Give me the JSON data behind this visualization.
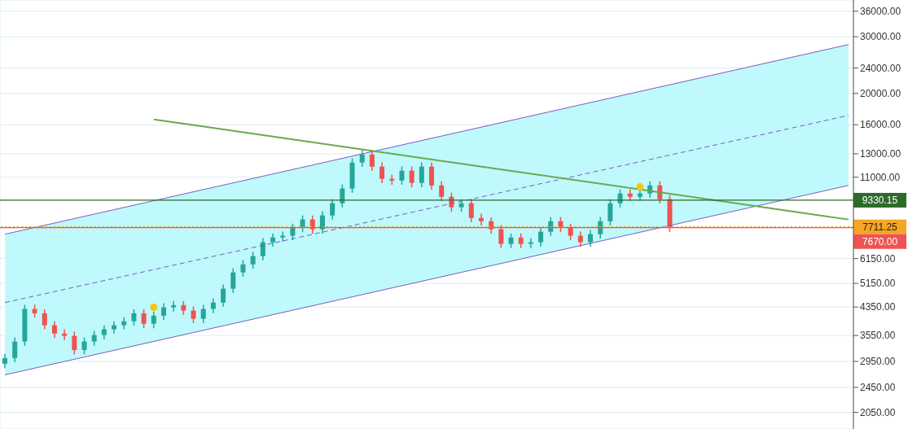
{
  "chart_data": {
    "type": "candlestick",
    "categories": [
      null,
      null,
      null,
      null,
      null,
      null,
      null,
      null,
      null,
      null,
      null,
      null,
      null,
      null,
      null,
      null,
      null,
      null,
      null,
      null,
      null,
      null,
      null,
      null,
      null,
      null,
      null,
      null,
      null,
      null,
      null,
      null,
      null,
      null,
      null,
      null,
      null,
      null,
      null,
      null,
      null,
      null,
      null,
      null,
      null,
      null,
      null,
      null,
      null,
      null,
      null,
      null,
      null,
      null,
      null,
      null,
      null,
      null,
      null,
      null,
      null,
      null,
      null,
      null,
      null,
      null,
      null,
      null,
      null,
      null,
      null,
      null,
      null,
      null,
      null,
      null,
      null,
      null,
      null,
      null,
      null,
      null,
      null,
      null,
      null,
      null
    ],
    "ohlc": [
      [
        2900,
        3110,
        2810,
        3020
      ],
      [
        3020,
        3500,
        2930,
        3400
      ],
      [
        3400,
        4420,
        3300,
        4290
      ],
      [
        4290,
        4420,
        4040,
        4160
      ],
      [
        4160,
        4280,
        3710,
        3820
      ],
      [
        3820,
        3930,
        3490,
        3600
      ],
      [
        3600,
        3710,
        3430,
        3540
      ],
      [
        3540,
        3650,
        3100,
        3200
      ],
      [
        3200,
        3500,
        3100,
        3400
      ],
      [
        3400,
        3670,
        3300,
        3560
      ],
      [
        3560,
        3820,
        3450,
        3710
      ],
      [
        3710,
        3930,
        3600,
        3820
      ],
      [
        3820,
        4050,
        3710,
        3930
      ],
      [
        3930,
        4280,
        3810,
        4160
      ],
      [
        4160,
        4280,
        3740,
        3860
      ],
      [
        3860,
        4210,
        3740,
        4090
      ],
      [
        4090,
        4470,
        3970,
        4340
      ],
      [
        4340,
        4540,
        4210,
        4410
      ],
      [
        4410,
        4540,
        4110,
        4240
      ],
      [
        4240,
        4370,
        3880,
        4000
      ],
      [
        4000,
        4420,
        3880,
        4290
      ],
      [
        4290,
        4620,
        4160,
        4490
      ],
      [
        4490,
        5110,
        4360,
        4960
      ],
      [
        4960,
        5740,
        4810,
        5570
      ],
      [
        5570,
        6080,
        5400,
        5900
      ],
      [
        5900,
        6450,
        5720,
        6260
      ],
      [
        6260,
        7120,
        6070,
        6910
      ],
      [
        6910,
        7360,
        6700,
        7150
      ],
      [
        7150,
        7460,
        6940,
        7240
      ],
      [
        7240,
        7890,
        7020,
        7660
      ],
      [
        7660,
        8370,
        7430,
        8130
      ],
      [
        8130,
        8370,
        7350,
        7580
      ],
      [
        7580,
        8620,
        7350,
        8370
      ],
      [
        8370,
        9400,
        8120,
        9130
      ],
      [
        9130,
        10440,
        8860,
        10140
      ],
      [
        10140,
        12580,
        9840,
        12210
      ],
      [
        12210,
        13330,
        11840,
        12940
      ],
      [
        12940,
        13330,
        11500,
        11860
      ],
      [
        11860,
        12220,
        10540,
        10870
      ],
      [
        10870,
        11200,
        10420,
        10740
      ],
      [
        10740,
        11870,
        10420,
        11520
      ],
      [
        11520,
        11870,
        10240,
        10560
      ],
      [
        10560,
        12220,
        10240,
        11860
      ],
      [
        11860,
        12220,
        10060,
        10370
      ],
      [
        10370,
        10680,
        9270,
        9560
      ],
      [
        9560,
        9850,
        8600,
        8870
      ],
      [
        8870,
        9400,
        8600,
        9130
      ],
      [
        9130,
        9400,
        7970,
        8220
      ],
      [
        8220,
        8470,
        7790,
        8030
      ],
      [
        8030,
        8270,
        7350,
        7580
      ],
      [
        7580,
        7810,
        6630,
        6830
      ],
      [
        6830,
        7360,
        6630,
        7150
      ],
      [
        7150,
        7360,
        6630,
        6830
      ],
      [
        6830,
        7120,
        6630,
        6910
      ],
      [
        6910,
        7670,
        6700,
        7450
      ],
      [
        7450,
        8270,
        7230,
        8030
      ],
      [
        8030,
        8270,
        7430,
        7660
      ],
      [
        7660,
        7890,
        7020,
        7240
      ],
      [
        7240,
        7460,
        6700,
        6910
      ],
      [
        6910,
        7540,
        6700,
        7320
      ],
      [
        7320,
        8270,
        7100,
        8030
      ],
      [
        8030,
        9400,
        7790,
        9130
      ],
      [
        9130,
        10080,
        8860,
        9790
      ],
      [
        9790,
        10080,
        9270,
        9560
      ],
      [
        9560,
        10080,
        9270,
        9790
      ],
      [
        9790,
        10680,
        9500,
        10370
      ],
      [
        10370,
        10680,
        9120,
        9400
      ],
      [
        9400,
        9680,
        7440,
        7670
      ],
      null,
      null,
      null,
      null,
      null,
      null,
      null,
      null,
      null,
      null,
      null,
      null,
      null,
      null,
      null,
      null,
      null,
      null
    ],
    "series": [
      {
        "type": "line",
        "color": "#7b5cc4",
        "line_style": "dashed",
        "values": [
          4490,
          null,
          null,
          null,
          null,
          null,
          null,
          null,
          null,
          null,
          null,
          null,
          null,
          null,
          null,
          null,
          null,
          null,
          null,
          null,
          null,
          null,
          null,
          null,
          null,
          null,
          null,
          null,
          null,
          null,
          null,
          null,
          null,
          null,
          null,
          null,
          null,
          null,
          null,
          null,
          null,
          null,
          null,
          null,
          null,
          null,
          null,
          null,
          null,
          null,
          null,
          null,
          null,
          null,
          null,
          null,
          null,
          null,
          null,
          null,
          null,
          null,
          null,
          null,
          null,
          null,
          null,
          null,
          null,
          null,
          null,
          null,
          null,
          null,
          null,
          null,
          null,
          null,
          null,
          null,
          null,
          null,
          null,
          null,
          null,
          17100
        ],
        "lower": [
          2680,
          null,
          null,
          null,
          null,
          null,
          null,
          null,
          null,
          null,
          null,
          null,
          null,
          null,
          null,
          null,
          null,
          null,
          null,
          null,
          null,
          null,
          null,
          null,
          null,
          null,
          null,
          null,
          null,
          null,
          null,
          null,
          null,
          null,
          null,
          null,
          null,
          null,
          null,
          null,
          null,
          null,
          null,
          null,
          null,
          null,
          null,
          null,
          null,
          null,
          null,
          null,
          null,
          null,
          null,
          null,
          null,
          null,
          null,
          null,
          null,
          null,
          null,
          null,
          null,
          null,
          null,
          null,
          null,
          null,
          null,
          null,
          null,
          null,
          null,
          null,
          null,
          null,
          null,
          null,
          null,
          null,
          null,
          null,
          null,
          10370
        ],
        "upper": [
          7320,
          null,
          null,
          null,
          null,
          null,
          null,
          null,
          null,
          null,
          null,
          null,
          null,
          null,
          null,
          null,
          null,
          null,
          null,
          null,
          null,
          null,
          null,
          null,
          null,
          null,
          null,
          null,
          null,
          null,
          null,
          null,
          null,
          null,
          null,
          null,
          null,
          null,
          null,
          null,
          null,
          null,
          null,
          null,
          null,
          null,
          null,
          null,
          null,
          null,
          null,
          null,
          null,
          null,
          null,
          null,
          null,
          null,
          null,
          null,
          null,
          null,
          null,
          null,
          null,
          null,
          null,
          null,
          null,
          null,
          null,
          null,
          null,
          null,
          null,
          null,
          null,
          null,
          null,
          null,
          null,
          null,
          null,
          null,
          null,
          28370
        ]
      },
      {
        "type": "line",
        "color": "#7b5cc4",
        "line_style": "solid",
        "values": [
          2680,
          null,
          null,
          null,
          null,
          null,
          null,
          null,
          null,
          null,
          null,
          null,
          null,
          null,
          null,
          null,
          null,
          null,
          null,
          null,
          null,
          null,
          null,
          null,
          null,
          null,
          null,
          null,
          null,
          null,
          null,
          null,
          null,
          null,
          null,
          null,
          null,
          null,
          null,
          null,
          null,
          null,
          null,
          null,
          null,
          null,
          null,
          null,
          null,
          null,
          null,
          null,
          null,
          null,
          null,
          null,
          null,
          null,
          null,
          null,
          null,
          null,
          null,
          null,
          null,
          null,
          null,
          null,
          null,
          null,
          null,
          null,
          null,
          null,
          null,
          null,
          null,
          null,
          null,
          null,
          null,
          null,
          null,
          null,
          null,
          10370
        ]
      },
      {
        "type": "line",
        "color": "#7b5cc4",
        "line_style": "solid",
        "values": [
          7320,
          null,
          null,
          null,
          null,
          null,
          null,
          null,
          null,
          null,
          null,
          null,
          null,
          null,
          null,
          null,
          null,
          null,
          null,
          null,
          null,
          null,
          null,
          null,
          null,
          null,
          null,
          null,
          null,
          null,
          null,
          null,
          null,
          null,
          null,
          null,
          null,
          null,
          null,
          null,
          null,
          null,
          null,
          null,
          null,
          null,
          null,
          null,
          null,
          null,
          null,
          null,
          null,
          null,
          null,
          null,
          null,
          null,
          null,
          null,
          null,
          null,
          null,
          null,
          null,
          null,
          null,
          null,
          null,
          null,
          null,
          null,
          null,
          null,
          null,
          null,
          null,
          null,
          null,
          null,
          null,
          null,
          null,
          null,
          null,
          28370
        ]
      },
      {
        "type": "line",
        "color": "#6aa84f",
        "line_style": "solid",
        "values": [
          null,
          null,
          null,
          null,
          null,
          null,
          null,
          null,
          null,
          null,
          null,
          null,
          null,
          null,
          null,
          16620,
          null,
          null,
          null,
          null,
          null,
          null,
          null,
          null,
          null,
          null,
          null,
          null,
          null,
          null,
          null,
          null,
          null,
          null,
          null,
          null,
          null,
          null,
          null,
          null,
          null,
          null,
          null,
          null,
          null,
          null,
          null,
          null,
          null,
          null,
          null,
          null,
          null,
          null,
          null,
          null,
          null,
          null,
          null,
          null,
          null,
          null,
          null,
          null,
          null,
          null,
          null,
          null,
          null,
          null,
          null,
          null,
          null,
          null,
          null,
          null,
          null,
          null,
          null,
          null,
          null,
          null,
          null,
          null,
          null,
          8130
        ]
      },
      {
        "type": "scatter",
        "color": "#f5c518",
        "marker": "circle",
        "values": [
          null,
          null,
          null,
          null,
          null,
          null,
          null,
          null,
          null,
          null,
          null,
          null,
          null,
          null,
          null,
          4340,
          null,
          null,
          null,
          null,
          null,
          null,
          null,
          null,
          null,
          null,
          null,
          null,
          null,
          null,
          null,
          null,
          null,
          null,
          null,
          null,
          null,
          null,
          null,
          null,
          null,
          null,
          null,
          null,
          null,
          null,
          null,
          null,
          null,
          null,
          null,
          null,
          null,
          null,
          null,
          null,
          null,
          null,
          null,
          null,
          null,
          null,
          null,
          null,
          10260,
          null,
          null,
          null,
          null,
          null,
          null,
          null,
          null,
          null,
          null,
          null,
          null,
          null,
          null,
          null,
          null,
          null,
          null,
          null,
          null,
          null
        ]
      }
    ],
    "ref_lines": [
      {
        "axis": "y",
        "value": 9330.15,
        "label": "9330.15",
        "color": "#2e6b2a",
        "line_style": "solid"
      },
      {
        "axis": "y",
        "value": 7711.25,
        "label": "7711.25",
        "color": "#f5a623",
        "line_style": "dotted"
      },
      {
        "axis": "y",
        "value": 7670,
        "label": "7670.00",
        "color": "#ef5350",
        "line_style": "solid"
      }
    ],
    "log": "y",
    "ylim": [
      1820,
      39000
    ],
    "yticks": [
      {
        "value": 2050,
        "label": "2050.00"
      },
      {
        "value": 2450,
        "label": "2450.00"
      },
      {
        "value": 2950,
        "label": "2950.00"
      },
      {
        "value": 3550,
        "label": "3550.00"
      },
      {
        "value": 4350,
        "label": "4350.00"
      },
      {
        "value": 5150,
        "label": "5150.00"
      },
      {
        "value": 6150,
        "label": "6150.00"
      },
      {
        "value": 11000,
        "label": "11000.00"
      },
      {
        "value": 13000,
        "label": "13000.00"
      },
      {
        "value": 16000,
        "label": "16000.00"
      },
      {
        "value": 20000,
        "label": "20000.00"
      },
      {
        "value": 24000,
        "label": "24000.00"
      },
      {
        "value": 30000,
        "label": "30000.00"
      },
      {
        "value": 36000,
        "label": "36000.00"
      }
    ],
    "grid": true,
    "legend": false,
    "tick_labels": "y"
  }
}
